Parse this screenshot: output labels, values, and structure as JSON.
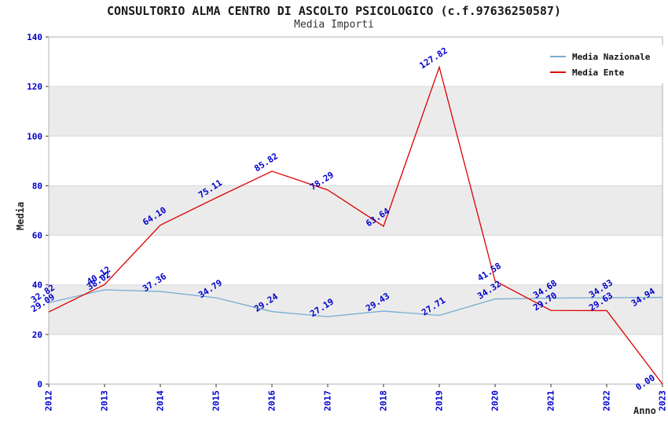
{
  "chart_data": {
    "type": "line",
    "title": "CONSULTORIO ALMA CENTRO DI ASCOLTO PSICOLOGICO (c.f.97636250587)",
    "subtitle": "Media Importi",
    "xlabel": "Anno",
    "ylabel": "Media",
    "x": [
      2012,
      2013,
      2014,
      2015,
      2016,
      2017,
      2018,
      2019,
      2020,
      2021,
      2022,
      2023
    ],
    "ylim": [
      0,
      140
    ],
    "yticks": [
      0,
      20,
      40,
      60,
      80,
      100,
      120,
      140
    ],
    "grid": true,
    "legend_position": "top-right",
    "series": [
      {
        "name": "Media Nazionale",
        "color": "#74add1",
        "values": [
          32.82,
          38.02,
          37.36,
          34.79,
          29.24,
          27.19,
          29.43,
          27.71,
          34.32,
          34.68,
          34.83,
          34.94
        ]
      },
      {
        "name": "Media Ente",
        "color": "#dd0000",
        "values": [
          29.09,
          40.12,
          64.1,
          75.11,
          85.82,
          78.29,
          63.64,
          127.82,
          41.58,
          29.7,
          29.63,
          0
        ]
      }
    ],
    "colors": {
      "tick_label": "#0000cc",
      "data_label": "#0000cc",
      "band": "#ebebeb",
      "grid": "#d9d9d9",
      "border": "#b3b3b3",
      "tick_mark": "#333333"
    }
  }
}
